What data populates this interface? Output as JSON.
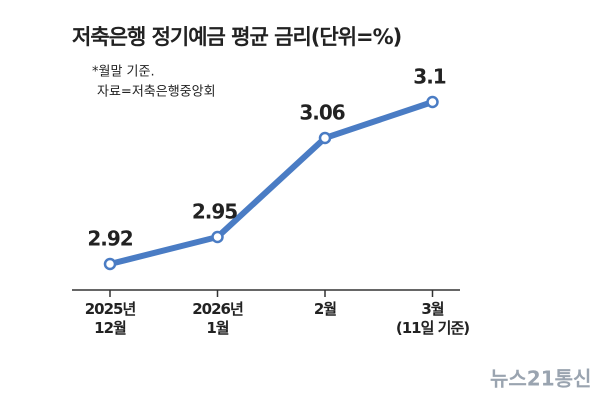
{
  "chart_data": {
    "type": "line",
    "title": "저축은행 정기예금  평균 금리(단위=%)",
    "notes": [
      "*월말 기준.",
      "자료=저축은행중앙회"
    ],
    "categories": [
      "2025년\n12월",
      "2026년\n1월",
      "2월",
      "3월\n(11일 기준)"
    ],
    "series": [
      {
        "name": "평균 금리",
        "color": "#4a7cc4",
        "values": [
          2.92,
          2.95,
          3.06,
          3.1
        ]
      }
    ],
    "ylim": [
      2.88,
      3.14
    ],
    "watermark": "뉴스21통신"
  }
}
